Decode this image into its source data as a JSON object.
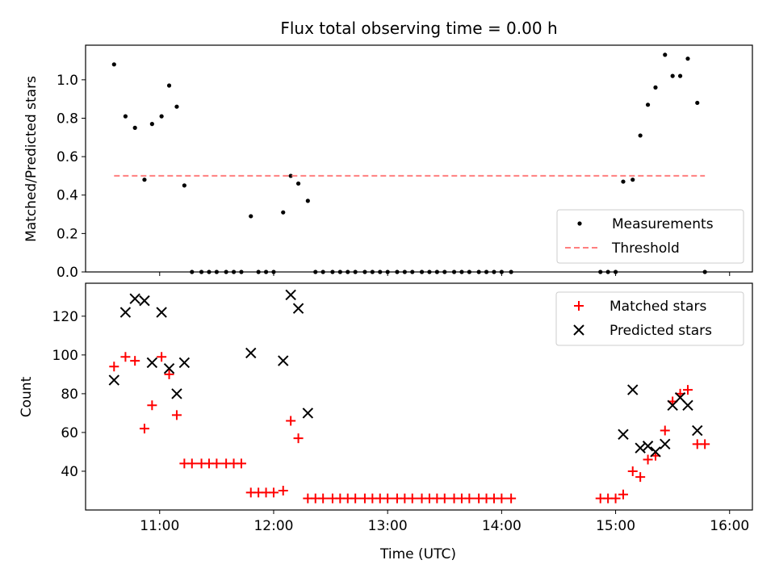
{
  "chart_data": [
    {
      "type": "scatter",
      "title": "Flux total observing time = 0.00 h",
      "xlabel": "",
      "ylabel": "Matched/Predicted stars",
      "ylim": [
        0,
        1.18
      ],
      "xlim": [
        "10:21",
        "16:12"
      ],
      "yticks": [
        "0.0",
        "0.2",
        "0.4",
        "0.6",
        "0.8",
        "1.0"
      ],
      "legend": {
        "placement": "lower-right",
        "entries": [
          "Measurements",
          "Threshold"
        ]
      },
      "series": [
        {
          "name": "Measurements",
          "marker": "dot",
          "color": "#000000",
          "points": [
            [
              "10:36",
              1.08
            ],
            [
              "10:42",
              0.81
            ],
            [
              "10:47",
              0.75
            ],
            [
              "10:52",
              0.48
            ],
            [
              "10:56",
              0.77
            ],
            [
              "11:01",
              0.81
            ],
            [
              "11:05",
              0.97
            ],
            [
              "11:09",
              0.86
            ],
            [
              "11:13",
              0.45
            ],
            [
              "11:17",
              0.0
            ],
            [
              "11:22",
              0.0
            ],
            [
              "11:26",
              0.0
            ],
            [
              "11:30",
              0.0
            ],
            [
              "11:35",
              0.0
            ],
            [
              "11:39",
              0.0
            ],
            [
              "11:43",
              0.0
            ],
            [
              "11:48",
              0.29
            ],
            [
              "11:52",
              0.0
            ],
            [
              "11:56",
              0.0
            ],
            [
              "12:00",
              0.0
            ],
            [
              "12:05",
              0.31
            ],
            [
              "12:09",
              0.5
            ],
            [
              "12:13",
              0.46
            ],
            [
              "12:18",
              0.37
            ],
            [
              "12:22",
              0.0
            ],
            [
              "12:26",
              0.0
            ],
            [
              "12:31",
              0.0
            ],
            [
              "12:35",
              0.0
            ],
            [
              "12:39",
              0.0
            ],
            [
              "12:43",
              0.0
            ],
            [
              "12:48",
              0.0
            ],
            [
              "12:52",
              0.0
            ],
            [
              "12:56",
              0.0
            ],
            [
              "13:00",
              0.0
            ],
            [
              "13:05",
              0.0
            ],
            [
              "13:09",
              0.0
            ],
            [
              "13:13",
              0.0
            ],
            [
              "13:18",
              0.0
            ],
            [
              "13:22",
              0.0
            ],
            [
              "13:26",
              0.0
            ],
            [
              "13:30",
              0.0
            ],
            [
              "13:35",
              0.0
            ],
            [
              "13:39",
              0.0
            ],
            [
              "13:43",
              0.0
            ],
            [
              "13:48",
              0.0
            ],
            [
              "13:52",
              0.0
            ],
            [
              "13:56",
              0.0
            ],
            [
              "14:00",
              0.0
            ],
            [
              "14:05",
              0.0
            ],
            [
              "14:52",
              0.0
            ],
            [
              "14:56",
              0.0
            ],
            [
              "15:00",
              0.0
            ],
            [
              "15:04",
              0.47
            ],
            [
              "15:09",
              0.48
            ],
            [
              "15:13",
              0.71
            ],
            [
              "15:17",
              0.87
            ],
            [
              "15:21",
              0.96
            ],
            [
              "15:26",
              1.13
            ],
            [
              "15:30",
              1.02
            ],
            [
              "15:34",
              1.02
            ],
            [
              "15:38",
              1.11
            ],
            [
              "15:43",
              0.88
            ],
            [
              "15:47",
              0.0
            ]
          ]
        },
        {
          "name": "Threshold",
          "style": "dashed-line",
          "color": "#ff7f7f",
          "points": [
            [
              "10:36",
              0.5
            ],
            [
              "15:47",
              0.5
            ]
          ]
        }
      ]
    },
    {
      "type": "scatter",
      "title": "",
      "xlabel": "Time (UTC)",
      "ylabel": "Count",
      "ylim": [
        20,
        137
      ],
      "xlim": [
        "10:21",
        "16:12"
      ],
      "yticks": [
        "40",
        "60",
        "80",
        "100",
        "120"
      ],
      "xticks": [
        "11:00",
        "12:00",
        "13:00",
        "14:00",
        "15:00",
        "16:00"
      ],
      "legend": {
        "placement": "upper-right",
        "entries": [
          "Matched stars",
          "Predicted stars"
        ]
      },
      "series": [
        {
          "name": "Matched stars",
          "marker": "plus",
          "color": "#ff0000",
          "points": [
            [
              "10:36",
              94
            ],
            [
              "10:42",
              99
            ],
            [
              "10:47",
              97
            ],
            [
              "10:52",
              62
            ],
            [
              "10:56",
              74
            ],
            [
              "11:01",
              99
            ],
            [
              "11:05",
              90
            ],
            [
              "11:09",
              69
            ],
            [
              "11:13",
              44
            ],
            [
              "11:17",
              44
            ],
            [
              "11:22",
              44
            ],
            [
              "11:26",
              44
            ],
            [
              "11:30",
              44
            ],
            [
              "11:35",
              44
            ],
            [
              "11:39",
              44
            ],
            [
              "11:43",
              44
            ],
            [
              "11:48",
              29
            ],
            [
              "11:52",
              29
            ],
            [
              "11:56",
              29
            ],
            [
              "12:00",
              29
            ],
            [
              "12:05",
              30
            ],
            [
              "12:09",
              66
            ],
            [
              "12:13",
              57
            ],
            [
              "12:18",
              26
            ],
            [
              "12:22",
              26
            ],
            [
              "12:26",
              26
            ],
            [
              "12:31",
              26
            ],
            [
              "12:35",
              26
            ],
            [
              "12:39",
              26
            ],
            [
              "12:43",
              26
            ],
            [
              "12:48",
              26
            ],
            [
              "12:52",
              26
            ],
            [
              "12:56",
              26
            ],
            [
              "13:00",
              26
            ],
            [
              "13:05",
              26
            ],
            [
              "13:09",
              26
            ],
            [
              "13:13",
              26
            ],
            [
              "13:18",
              26
            ],
            [
              "13:22",
              26
            ],
            [
              "13:26",
              26
            ],
            [
              "13:30",
              26
            ],
            [
              "13:35",
              26
            ],
            [
              "13:39",
              26
            ],
            [
              "13:43",
              26
            ],
            [
              "13:48",
              26
            ],
            [
              "13:52",
              26
            ],
            [
              "13:56",
              26
            ],
            [
              "14:00",
              26
            ],
            [
              "14:05",
              26
            ],
            [
              "14:52",
              26
            ],
            [
              "14:56",
              26
            ],
            [
              "15:00",
              26
            ],
            [
              "15:04",
              28
            ],
            [
              "15:09",
              40
            ],
            [
              "15:13",
              37
            ],
            [
              "15:17",
              46
            ],
            [
              "15:21",
              48
            ],
            [
              "15:26",
              61
            ],
            [
              "15:30",
              76
            ],
            [
              "15:34",
              80
            ],
            [
              "15:38",
              82
            ],
            [
              "15:43",
              54
            ],
            [
              "15:47",
              54
            ]
          ]
        },
        {
          "name": "Predicted stars",
          "marker": "x",
          "color": "#000000",
          "points": [
            [
              "10:36",
              87
            ],
            [
              "10:42",
              122
            ],
            [
              "10:47",
              129
            ],
            [
              "10:52",
              128
            ],
            [
              "10:56",
              96
            ],
            [
              "11:01",
              122
            ],
            [
              "11:05",
              93
            ],
            [
              "11:09",
              80
            ],
            [
              "11:13",
              96
            ],
            [
              "11:48",
              101
            ],
            [
              "12:05",
              97
            ],
            [
              "12:09",
              131
            ],
            [
              "12:13",
              124
            ],
            [
              "12:18",
              70
            ],
            [
              "15:04",
              59
            ],
            [
              "15:09",
              82
            ],
            [
              "15:13",
              52
            ],
            [
              "15:17",
              53
            ],
            [
              "15:21",
              50
            ],
            [
              "15:26",
              54
            ],
            [
              "15:30",
              74
            ],
            [
              "15:34",
              78
            ],
            [
              "15:38",
              74
            ],
            [
              "15:43",
              61
            ]
          ]
        }
      ]
    }
  ]
}
